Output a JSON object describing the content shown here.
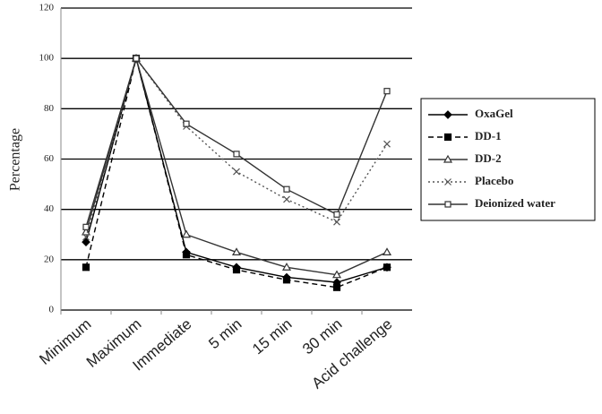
{
  "chart_data": {
    "type": "line",
    "y_label": "Percentage",
    "categories": [
      "Minimum",
      "Maximum",
      "Immediate",
      "5 min",
      "15 min",
      "30 min",
      "Acid challenge"
    ],
    "series": [
      {
        "name": "OxaGel",
        "color": "#000000",
        "dash": "solid",
        "marker": "diamond",
        "values": [
          27,
          100,
          23,
          17,
          13,
          11,
          17
        ]
      },
      {
        "name": "DD-1",
        "color": "#000000",
        "dash": "dashed",
        "marker": "square",
        "values": [
          17,
          100,
          22,
          16,
          12,
          9,
          17
        ]
      },
      {
        "name": "DD-2",
        "color": "#333333",
        "dash": "solid",
        "marker": "triangle",
        "values": [
          31,
          100,
          30,
          23,
          17,
          14,
          23
        ]
      },
      {
        "name": "Placebo",
        "color": "#555555",
        "dash": "dotted",
        "marker": "cross",
        "values": [
          29,
          100,
          73,
          55,
          44,
          35,
          66
        ]
      },
      {
        "name": "Deionized water",
        "color": "#333333",
        "dash": "solid",
        "marker": "open-square",
        "values": [
          33,
          100,
          74,
          62,
          48,
          38,
          87
        ]
      }
    ],
    "ylim": [
      0,
      120
    ],
    "yticks": [
      0,
      20,
      40,
      60,
      80,
      100,
      120
    ],
    "grid": true,
    "legend": "right"
  }
}
